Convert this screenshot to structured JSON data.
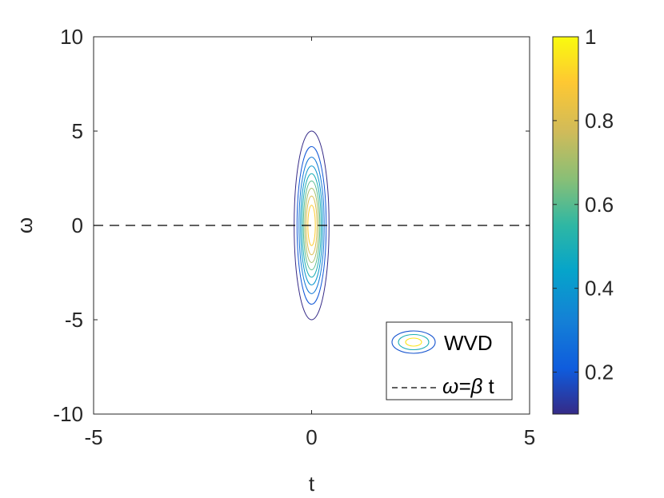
{
  "chart_data": {
    "type": "contour",
    "xlabel": "t",
    "ylabel": "ω",
    "xlim": [
      -5,
      5
    ],
    "ylim": [
      -10,
      10
    ],
    "x_ticks": [
      "-5",
      "0",
      "5"
    ],
    "y_ticks": [
      "10",
      "5",
      "0",
      "-5",
      "-10"
    ],
    "grid": false,
    "contour": {
      "center": [
        0,
        0
      ],
      "levels": [
        0.1,
        0.2,
        0.3,
        0.4,
        0.5,
        0.6,
        0.7,
        0.8,
        0.9
      ],
      "outer_half_width_t": 0.4,
      "outer_half_height_omega": 5.0,
      "colormap": "parula"
    },
    "series": [
      {
        "name": "WVD",
        "style": "contour"
      },
      {
        "name": "ω=β t",
        "style": "dashed",
        "color": "#000000",
        "x": [
          -5,
          5
        ],
        "y": [
          0,
          0
        ]
      }
    ],
    "legend": {
      "placement": "bottom-right",
      "entries": [
        {
          "label": "WVD",
          "kind": "contour-swatch"
        },
        {
          "label_prefix": "ω=",
          "label_symbol": "β",
          "label_suffix": " t",
          "kind": "dashed-line"
        }
      ]
    },
    "colorbar": {
      "range": [
        0.1,
        1.0
      ],
      "ticks": [
        "1",
        "0.8",
        "0.6",
        "0.4",
        "0.2"
      ],
      "tick_values": [
        1.0,
        0.8,
        0.6,
        0.4,
        0.2
      ]
    }
  }
}
